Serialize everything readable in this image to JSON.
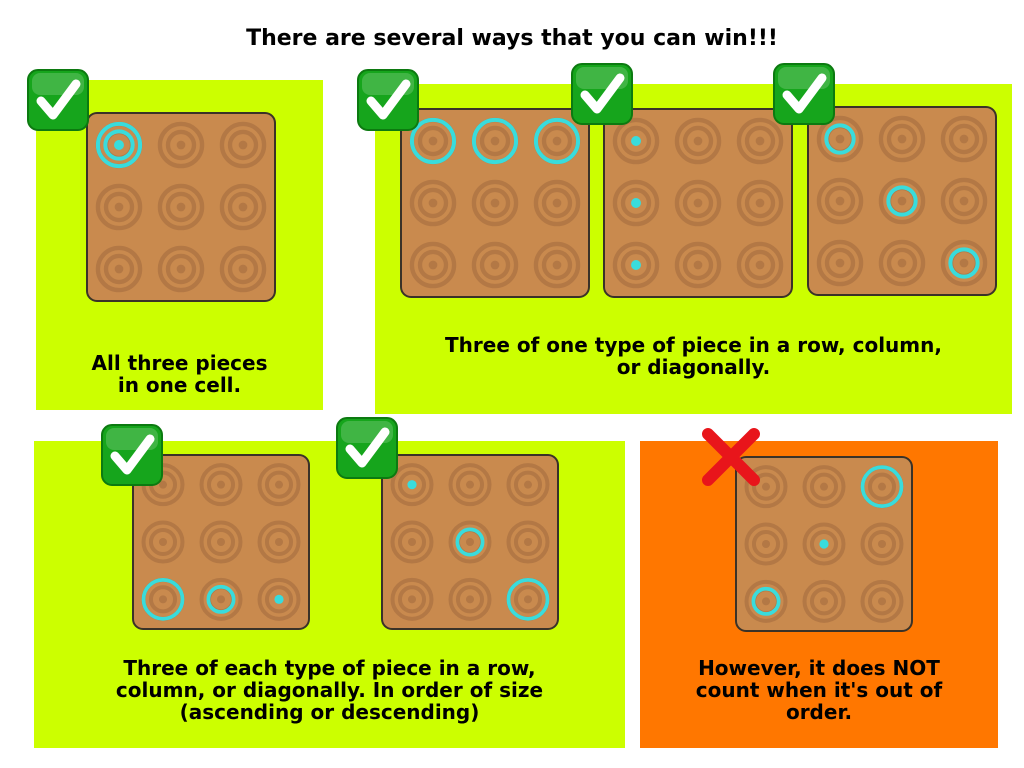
{
  "title": "There are several ways that you can win!!!",
  "colors": {
    "panel_green": "#ccff00",
    "panel_orange": "#ff7700",
    "board": "#c98a4e",
    "ring": "#b37845",
    "piece": "#39dcdc",
    "check_green": "#16a51c",
    "cross_red": "#e8151b"
  },
  "panels": [
    {
      "id": "single-cell",
      "caption": [
        "All three pieces",
        "in one cell."
      ],
      "valid": true,
      "boards": [
        {
          "pieces": [
            {
              "row": 0,
              "col": 0,
              "sizes": [
                "large",
                "medium",
                "small"
              ]
            }
          ]
        }
      ]
    },
    {
      "id": "one-type",
      "caption": [
        "Three of one type of piece in a row, column,",
        "or diagonally."
      ],
      "valid": true,
      "boards": [
        {
          "pieces": [
            {
              "row": 0,
              "col": 0,
              "sizes": [
                "large"
              ]
            },
            {
              "row": 0,
              "col": 1,
              "sizes": [
                "large"
              ]
            },
            {
              "row": 0,
              "col": 2,
              "sizes": [
                "large"
              ]
            }
          ]
        },
        {
          "pieces": [
            {
              "row": 0,
              "col": 0,
              "sizes": [
                "small"
              ]
            },
            {
              "row": 1,
              "col": 0,
              "sizes": [
                "small"
              ]
            },
            {
              "row": 2,
              "col": 0,
              "sizes": [
                "small"
              ]
            }
          ]
        },
        {
          "pieces": [
            {
              "row": 0,
              "col": 0,
              "sizes": [
                "medium"
              ]
            },
            {
              "row": 1,
              "col": 1,
              "sizes": [
                "medium"
              ]
            },
            {
              "row": 2,
              "col": 2,
              "sizes": [
                "medium"
              ]
            }
          ]
        }
      ]
    },
    {
      "id": "each-type-ordered",
      "caption": [
        "Three of each type of piece in a row,",
        "column, or diagonally. In order of size",
        "(ascending or descending)"
      ],
      "valid": true,
      "boards": [
        {
          "pieces": [
            {
              "row": 2,
              "col": 0,
              "sizes": [
                "large"
              ]
            },
            {
              "row": 2,
              "col": 1,
              "sizes": [
                "medium"
              ]
            },
            {
              "row": 2,
              "col": 2,
              "sizes": [
                "small"
              ]
            }
          ]
        },
        {
          "pieces": [
            {
              "row": 0,
              "col": 0,
              "sizes": [
                "small"
              ]
            },
            {
              "row": 1,
              "col": 1,
              "sizes": [
                "medium"
              ]
            },
            {
              "row": 2,
              "col": 2,
              "sizes": [
                "large"
              ]
            }
          ]
        }
      ]
    },
    {
      "id": "out-of-order",
      "caption": [
        "However, it does NOT",
        "count when it's out of",
        "order."
      ],
      "valid": false,
      "boards": [
        {
          "pieces": [
            {
              "row": 0,
              "col": 2,
              "sizes": [
                "large"
              ]
            },
            {
              "row": 1,
              "col": 1,
              "sizes": [
                "small"
              ]
            },
            {
              "row": 2,
              "col": 0,
              "sizes": [
                "medium"
              ]
            }
          ]
        }
      ]
    }
  ]
}
